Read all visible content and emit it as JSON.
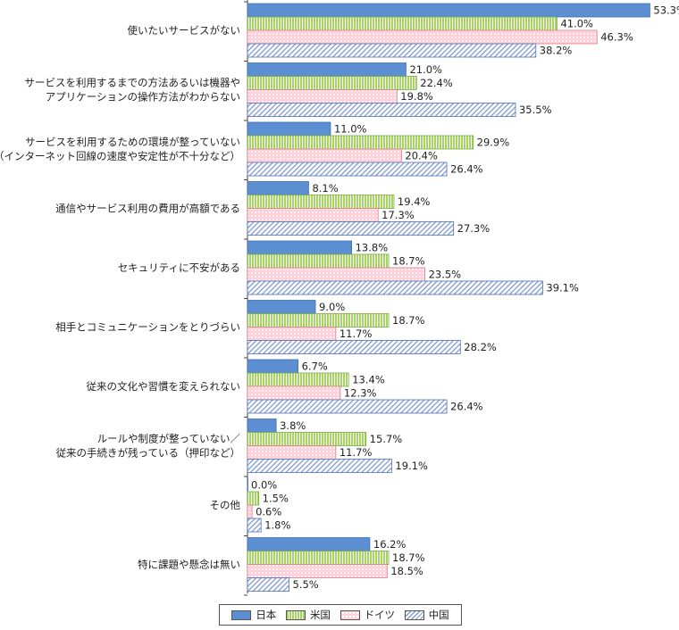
{
  "chart_data": {
    "type": "bar",
    "orientation": "horizontal",
    "categories": [
      [
        "使いたいサービスがない"
      ],
      [
        "サービスを利用するまでの方法あるいは機器や",
        "アプリケーションの操作方法がわからない"
      ],
      [
        "サービスを利用するための環境が整っていない",
        "（インターネット回線の速度や安定性が不十分など）"
      ],
      [
        "通信やサービス利用の費用が高額である"
      ],
      [
        "セキュリティに不安がある"
      ],
      [
        "相手とコミュニケーションをとりづらい"
      ],
      [
        "従来の文化や習慣を変えられない"
      ],
      [
        "ルールや制度が整っていない／",
        "従来の手続きが残っている（押印など）"
      ],
      [
        "その他"
      ],
      [
        "特に課題や懸念は無い"
      ]
    ],
    "series": [
      {
        "name": "日本",
        "color": "#5b8fd1",
        "pattern": "solid",
        "values": [
          53.3,
          21.0,
          11.0,
          8.1,
          13.8,
          9.0,
          6.7,
          3.8,
          0.0,
          16.2
        ]
      },
      {
        "name": "米国",
        "color": "#a7d562",
        "pattern": "vertical-stripes",
        "values": [
          41.0,
          22.4,
          29.9,
          19.4,
          18.7,
          18.7,
          13.4,
          15.7,
          1.5,
          18.7
        ]
      },
      {
        "name": "ドイツ",
        "color": "#ffc6d0",
        "pattern": "dots",
        "values": [
          46.3,
          19.8,
          20.4,
          17.3,
          23.5,
          11.7,
          12.3,
          11.7,
          0.6,
          18.5
        ]
      },
      {
        "name": "中国",
        "color": "#7f99d5",
        "pattern": "diagonal-hatch",
        "values": [
          38.2,
          35.5,
          26.4,
          27.3,
          39.1,
          28.2,
          26.4,
          19.1,
          1.8,
          5.5
        ]
      }
    ],
    "value_format": "one decimal with %",
    "legend_position": "bottom",
    "grid": false
  }
}
